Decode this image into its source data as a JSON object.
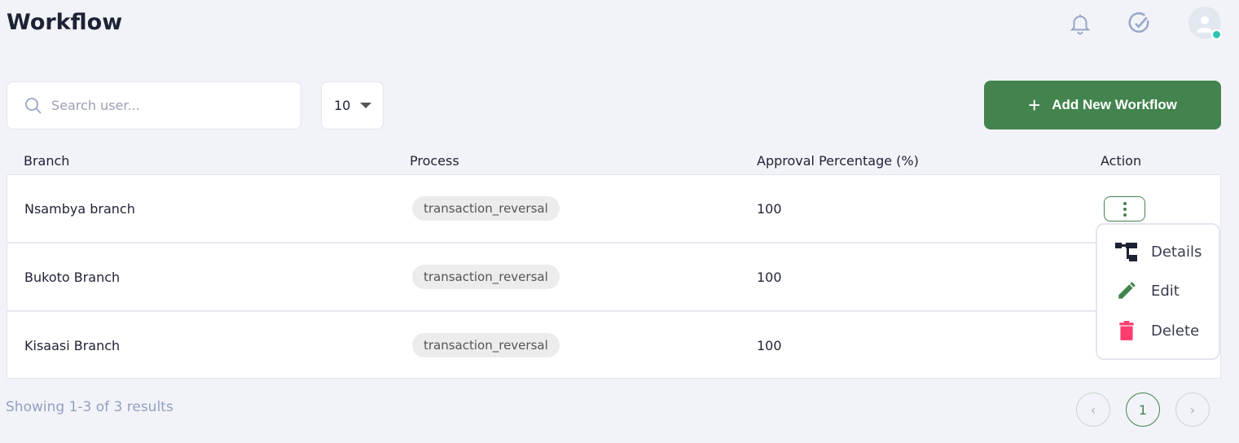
{
  "header": {
    "title": "Workflow",
    "icons": [
      "bell-icon",
      "check-circle-icon",
      "avatar-icon"
    ],
    "status_color": "#2bc3b4"
  },
  "toolbar": {
    "search_placeholder": "Search user...",
    "page_size": "10",
    "add_label": "Add New Workflow"
  },
  "table": {
    "columns": [
      "Branch",
      "Process",
      "Approval Percentage (%)",
      "Action"
    ],
    "rows": [
      {
        "branch": "Nsambya branch",
        "process": "transaction_reversal",
        "approval": "100"
      },
      {
        "branch": "Bukoto Branch",
        "process": "transaction_reversal",
        "approval": "100"
      },
      {
        "branch": "Kisaasi Branch",
        "process": "transaction_reversal",
        "approval": "100"
      }
    ]
  },
  "action_menu": {
    "items": [
      "Details",
      "Edit",
      "Delete"
    ]
  },
  "footer": {
    "summary": "Showing 1-3 of 3 results",
    "current_page": "1"
  },
  "colors": {
    "accent": "#43834e",
    "danger": "#ff3d6e"
  }
}
